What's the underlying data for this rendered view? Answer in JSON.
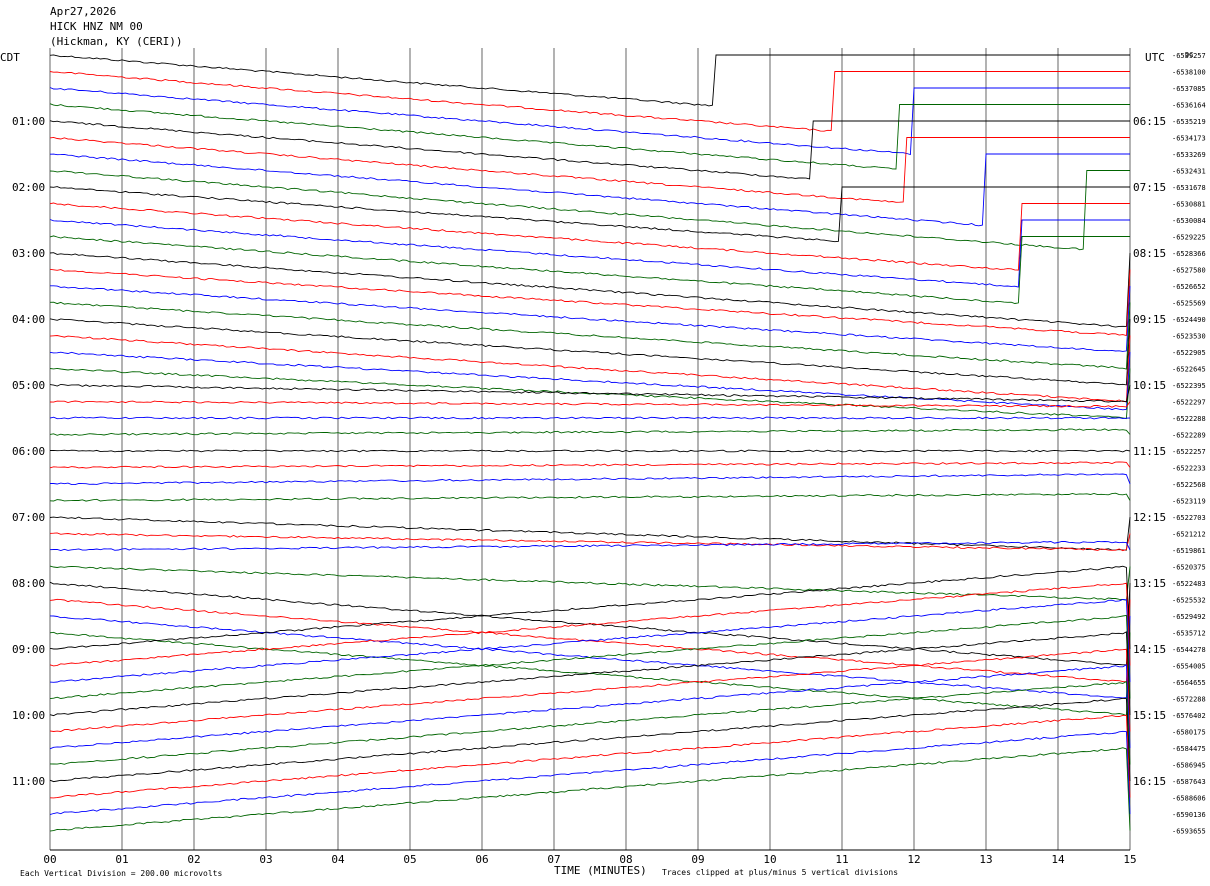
{
  "header": {
    "date": "Apr27,2026",
    "station": "HICK HNZ NM 00",
    "location": "(Hickman, KY (CERI))"
  },
  "left_zone": "CDT",
  "right_zone": "UTC",
  "dc_label": "DC",
  "footer": {
    "scale_note": "Each Vertical Division =  200.00 microvolts",
    "xlabel": "TIME (MINUTES)",
    "clip_note": "Traces clipped at plus/minus 5 vertical divisions"
  },
  "colors": {
    "cycle": [
      "#000000",
      "#ff0000",
      "#0000ff",
      "#006400"
    ],
    "grid": "#000000"
  },
  "chart_data": {
    "type": "line",
    "xlabel": "TIME (MINUTES)",
    "xlim": [
      0,
      15
    ],
    "x_ticks": [
      "00",
      "01",
      "02",
      "03",
      "04",
      "05",
      "06",
      "07",
      "08",
      "09",
      "10",
      "11",
      "12",
      "13",
      "14",
      "15"
    ],
    "left_hour_labels": [
      "01:00",
      "02:00",
      "03:00",
      "04:00",
      "05:00",
      "06:00",
      "07:00",
      "08:00",
      "09:00",
      "10:00",
      "11:00"
    ],
    "right_hour_labels": [
      "06:15",
      "07:15",
      "08:15",
      "09:15",
      "10:15",
      "11:15",
      "12:15",
      "13:15",
      "14:15",
      "15:15",
      "16:15"
    ],
    "dc_offsets": [
      "-6539257",
      "-6538100",
      "-6537085",
      "-6536164",
      "-6535219",
      "-6534173",
      "-6533269",
      "-6532431",
      "-6531678",
      "-6530881",
      "-6530084",
      "-6529225",
      "-6528366",
      "-6527580",
      "-6526652",
      "-6525569",
      "-6524490",
      "-6523530",
      "-6522905",
      "-6522645",
      "-6522395",
      "-6522297",
      "-6522288",
      "-6522289",
      "-6522257",
      "-6522233",
      "-6522568",
      "-6523119",
      "-6522703",
      "-6521212",
      "-6519861",
      "-6520375",
      "-6522483",
      "-6525532",
      "-6529492",
      "-6535712",
      "-6544278",
      "-6554005",
      "-6564655",
      "-6572288",
      "-6576402",
      "-6580175",
      "-6584475",
      "-6586945",
      "-6587643",
      "-6588606",
      "-6590136",
      "-6593655"
    ],
    "trace_drift_divisions": [
      -5,
      -5,
      -5,
      -5,
      -5,
      -5,
      -5,
      -5,
      -4.5,
      -4.5,
      -4.5,
      -4.5,
      -4.5,
      -4,
      -4,
      -4,
      -4,
      -4,
      -3.5,
      -3,
      -1,
      -0.3,
      0,
      0.3,
      0,
      0.3,
      0.6,
      0.4,
      -2,
      -1,
      0.5,
      -2,
      -5,
      -5,
      -5,
      -5,
      5,
      5,
      5,
      5,
      5,
      5,
      5,
      5,
      5,
      5,
      5,
      5
    ],
    "trace_end_minutes": [
      9.2,
      10.9,
      12,
      11.8,
      10.6,
      11.9,
      13,
      14.4,
      11,
      13.5,
      13.5,
      13.5,
      15,
      15,
      15,
      15,
      15,
      15,
      15,
      15,
      15,
      15,
      15,
      15,
      15,
      15,
      15,
      15,
      15,
      15,
      15,
      15,
      15,
      15,
      15,
      15,
      15,
      15,
      15,
      15,
      15,
      15,
      15,
      15,
      15,
      15,
      15,
      15
    ],
    "traces_per_hour": 4,
    "minutes_per_trace": 15
  }
}
